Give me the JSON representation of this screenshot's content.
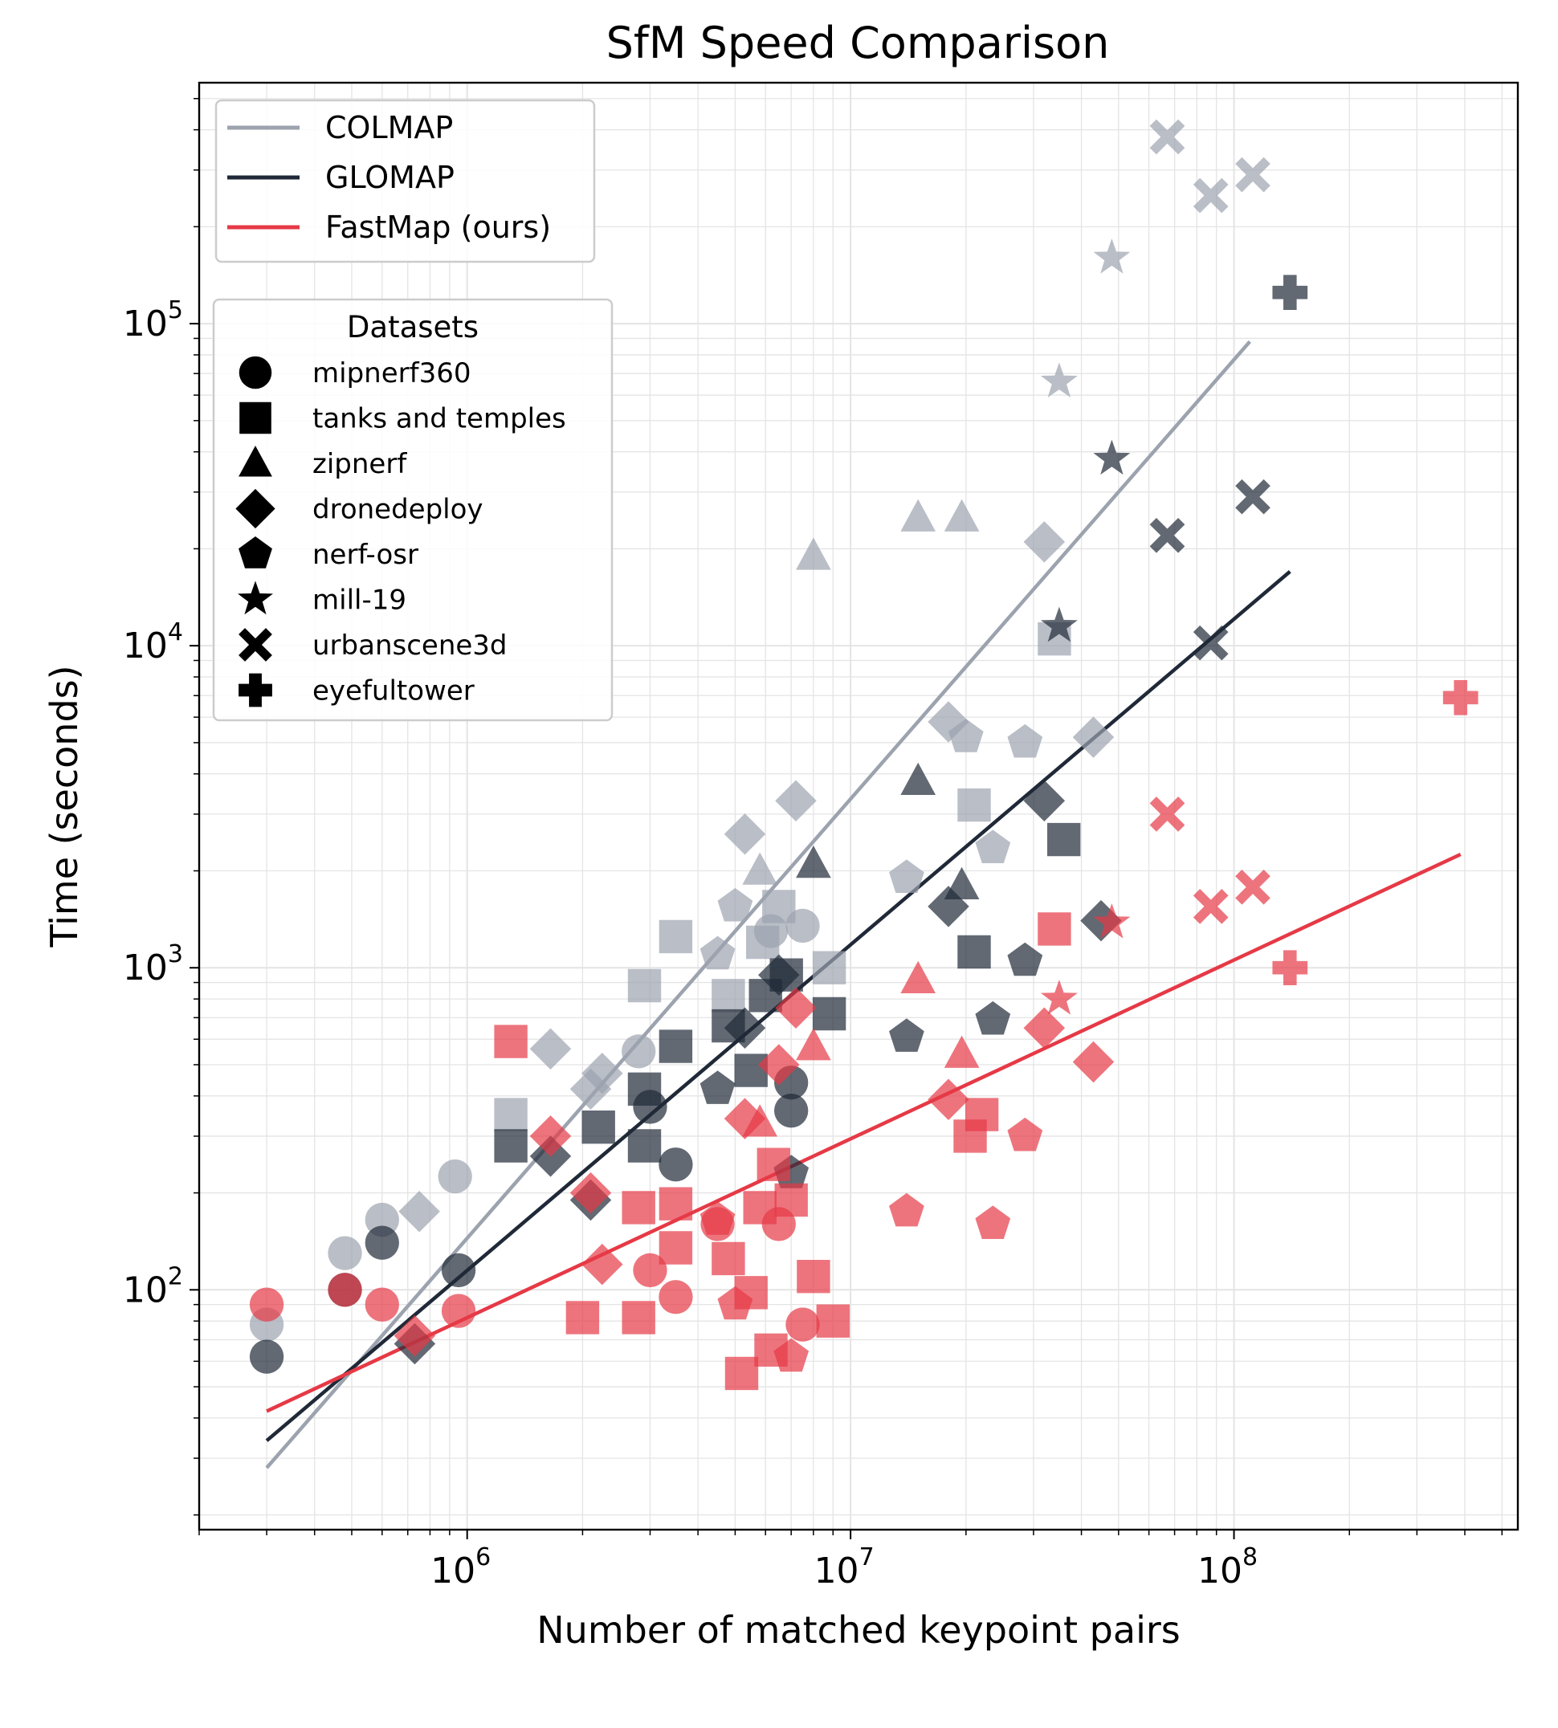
{
  "chart_data": {
    "type": "scatter",
    "title": "SfM Speed Comparison",
    "xlabel": "Number of matched keypoint pairs",
    "ylabel": "Time (seconds)",
    "xscale": "log",
    "yscale": "log",
    "xlim": [
      200000,
      550000000
    ],
    "ylim": [
      18,
      560000
    ],
    "grid": true,
    "x_ticks": [
      {
        "value": 1000000,
        "base": "10",
        "exp": "6"
      },
      {
        "value": 10000000,
        "base": "10",
        "exp": "7"
      },
      {
        "value": 100000000,
        "base": "10",
        "exp": "8"
      }
    ],
    "y_ticks": [
      {
        "value": 100,
        "base": "10",
        "exp": "2"
      },
      {
        "value": 1000,
        "base": "10",
        "exp": "3"
      },
      {
        "value": 10000,
        "base": "10",
        "exp": "4"
      },
      {
        "value": 100000,
        "base": "10",
        "exp": "5"
      }
    ],
    "methods_legend": {
      "placement": "upper-left",
      "entries": [
        {
          "name": "COLMAP",
          "color": "#9ca3af"
        },
        {
          "name": "GLOMAP",
          "color": "#1f2937"
        },
        {
          "name": "FastMap (ours)",
          "color": "#e63946"
        }
      ]
    },
    "datasets_legend": {
      "title": "Datasets",
      "placement": "upper-left",
      "entries": [
        {
          "name": "mipnerf360",
          "marker": "circle"
        },
        {
          "name": "tanks and temples",
          "marker": "square"
        },
        {
          "name": "zipnerf",
          "marker": "triangle"
        },
        {
          "name": "dronedeploy",
          "marker": "diamond"
        },
        {
          "name": "nerf-osr",
          "marker": "pentagon"
        },
        {
          "name": "mill-19",
          "marker": "star"
        },
        {
          "name": "urbanscene3d",
          "marker": "x"
        },
        {
          "name": "eyefultower",
          "marker": "plus"
        }
      ]
    },
    "fit_lines": [
      {
        "name": "COLMAP",
        "color": "#9ca3af",
        "x": [
          300000,
          110000000
        ],
        "y": [
          28,
          88000
        ]
      },
      {
        "name": "GLOMAP",
        "color": "#1f2937",
        "x": [
          300000,
          140000000
        ],
        "y": [
          34,
          17000
        ]
      },
      {
        "name": "FastMap (ours)",
        "color": "#e63946",
        "x": [
          300000,
          390000000
        ],
        "y": [
          42,
          2250
        ]
      }
    ],
    "series": [
      {
        "name": "COLMAP",
        "color": "#9ca3af",
        "points": [
          {
            "x": 300000,
            "y": 78,
            "m": "circle"
          },
          {
            "x": 480000,
            "y": 130,
            "m": "circle"
          },
          {
            "x": 600000,
            "y": 165,
            "m": "circle"
          },
          {
            "x": 930000,
            "y": 225,
            "m": "circle"
          },
          {
            "x": 2800000,
            "y": 550,
            "m": "circle"
          },
          {
            "x": 6200000,
            "y": 1300,
            "m": "circle"
          },
          {
            "x": 7500000,
            "y": 1350,
            "m": "circle"
          },
          {
            "x": 1300000,
            "y": 350,
            "m": "square"
          },
          {
            "x": 2900000,
            "y": 880,
            "m": "square"
          },
          {
            "x": 3500000,
            "y": 1250,
            "m": "square"
          },
          {
            "x": 4800000,
            "y": 820,
            "m": "square"
          },
          {
            "x": 5900000,
            "y": 1200,
            "m": "square"
          },
          {
            "x": 6500000,
            "y": 1550,
            "m": "square"
          },
          {
            "x": 8800000,
            "y": 1000,
            "m": "square"
          },
          {
            "x": 21000000,
            "y": 3200,
            "m": "square"
          },
          {
            "x": 34000000,
            "y": 10500,
            "m": "square"
          },
          {
            "x": 5800000,
            "y": 2000,
            "m": "triangle"
          },
          {
            "x": 8000000,
            "y": 19000,
            "m": "triangle"
          },
          {
            "x": 15000000,
            "y": 25000,
            "m": "triangle"
          },
          {
            "x": 19500000,
            "y": 25000,
            "m": "triangle"
          },
          {
            "x": 750000,
            "y": 175,
            "m": "diamond"
          },
          {
            "x": 1650000,
            "y": 560,
            "m": "diamond"
          },
          {
            "x": 2100000,
            "y": 420,
            "m": "diamond"
          },
          {
            "x": 2250000,
            "y": 470,
            "m": "diamond"
          },
          {
            "x": 5300000,
            "y": 2600,
            "m": "diamond"
          },
          {
            "x": 7200000,
            "y": 3300,
            "m": "diamond"
          },
          {
            "x": 18000000,
            "y": 5800,
            "m": "diamond"
          },
          {
            "x": 32000000,
            "y": 21000,
            "m": "diamond"
          },
          {
            "x": 43000000,
            "y": 5200,
            "m": "diamond"
          },
          {
            "x": 4500000,
            "y": 1100,
            "m": "pentagon"
          },
          {
            "x": 5000000,
            "y": 1550,
            "m": "pentagon"
          },
          {
            "x": 14000000,
            "y": 1900,
            "m": "pentagon"
          },
          {
            "x": 20000000,
            "y": 5200,
            "m": "pentagon"
          },
          {
            "x": 23500000,
            "y": 2350,
            "m": "pentagon"
          },
          {
            "x": 28500000,
            "y": 5000,
            "m": "pentagon"
          },
          {
            "x": 35000000,
            "y": 66000,
            "m": "star"
          },
          {
            "x": 48000000,
            "y": 160000,
            "m": "star"
          },
          {
            "x": 67000000,
            "y": 380000,
            "m": "x"
          },
          {
            "x": 87000000,
            "y": 250000,
            "m": "x"
          },
          {
            "x": 112000000,
            "y": 290000,
            "m": "x"
          }
        ]
      },
      {
        "name": "GLOMAP",
        "color": "#1f2937",
        "points": [
          {
            "x": 300000,
            "y": 62,
            "m": "circle"
          },
          {
            "x": 480000,
            "y": 100,
            "m": "circle"
          },
          {
            "x": 600000,
            "y": 140,
            "m": "circle"
          },
          {
            "x": 950000,
            "y": 115,
            "m": "circle"
          },
          {
            "x": 3000000,
            "y": 370,
            "m": "circle"
          },
          {
            "x": 3500000,
            "y": 245,
            "m": "circle"
          },
          {
            "x": 7000000,
            "y": 440,
            "m": "circle"
          },
          {
            "x": 7000000,
            "y": 360,
            "m": "circle"
          },
          {
            "x": 1300000,
            "y": 280,
            "m": "square"
          },
          {
            "x": 2200000,
            "y": 320,
            "m": "square"
          },
          {
            "x": 2900000,
            "y": 420,
            "m": "square"
          },
          {
            "x": 2900000,
            "y": 280,
            "m": "square"
          },
          {
            "x": 3500000,
            "y": 570,
            "m": "square"
          },
          {
            "x": 4800000,
            "y": 660,
            "m": "square"
          },
          {
            "x": 5500000,
            "y": 480,
            "m": "square"
          },
          {
            "x": 6000000,
            "y": 820,
            "m": "square"
          },
          {
            "x": 6800000,
            "y": 950,
            "m": "square"
          },
          {
            "x": 8800000,
            "y": 720,
            "m": "square"
          },
          {
            "x": 21000000,
            "y": 1120,
            "m": "square"
          },
          {
            "x": 36000000,
            "y": 2500,
            "m": "square"
          },
          {
            "x": 8000000,
            "y": 2100,
            "m": "triangle"
          },
          {
            "x": 15000000,
            "y": 3800,
            "m": "triangle"
          },
          {
            "x": 19500000,
            "y": 1800,
            "m": "triangle"
          },
          {
            "x": 730000,
            "y": 68,
            "m": "diamond"
          },
          {
            "x": 1650000,
            "y": 260,
            "m": "diamond"
          },
          {
            "x": 2100000,
            "y": 190,
            "m": "diamond"
          },
          {
            "x": 5300000,
            "y": 650,
            "m": "diamond"
          },
          {
            "x": 6500000,
            "y": 950,
            "m": "diamond"
          },
          {
            "x": 18000000,
            "y": 1550,
            "m": "diamond"
          },
          {
            "x": 32000000,
            "y": 3300,
            "m": "diamond"
          },
          {
            "x": 45000000,
            "y": 1400,
            "m": "diamond"
          },
          {
            "x": 4500000,
            "y": 420,
            "m": "pentagon"
          },
          {
            "x": 7000000,
            "y": 230,
            "m": "pentagon"
          },
          {
            "x": 14000000,
            "y": 610,
            "m": "pentagon"
          },
          {
            "x": 23500000,
            "y": 690,
            "m": "pentagon"
          },
          {
            "x": 28500000,
            "y": 1050,
            "m": "pentagon"
          },
          {
            "x": 35000000,
            "y": 11500,
            "m": "star"
          },
          {
            "x": 48000000,
            "y": 38000,
            "m": "star"
          },
          {
            "x": 67000000,
            "y": 22000,
            "m": "x"
          },
          {
            "x": 87000000,
            "y": 10200,
            "m": "x"
          },
          {
            "x": 112000000,
            "y": 29000,
            "m": "x"
          },
          {
            "x": 140000000,
            "y": 125000,
            "m": "plus"
          }
        ]
      },
      {
        "name": "FastMap (ours)",
        "color": "#e63946",
        "points": [
          {
            "x": 300000,
            "y": 90,
            "m": "circle"
          },
          {
            "x": 480000,
            "y": 100,
            "m": "circle"
          },
          {
            "x": 600000,
            "y": 90,
            "m": "circle"
          },
          {
            "x": 950000,
            "y": 86,
            "m": "circle"
          },
          {
            "x": 3000000,
            "y": 115,
            "m": "circle"
          },
          {
            "x": 3500000,
            "y": 95,
            "m": "circle"
          },
          {
            "x": 4500000,
            "y": 160,
            "m": "circle"
          },
          {
            "x": 6500000,
            "y": 160,
            "m": "circle"
          },
          {
            "x": 7500000,
            "y": 78,
            "m": "circle"
          },
          {
            "x": 1300000,
            "y": 590,
            "m": "square"
          },
          {
            "x": 2000000,
            "y": 82,
            "m": "square"
          },
          {
            "x": 2800000,
            "y": 82,
            "m": "square"
          },
          {
            "x": 2800000,
            "y": 180,
            "m": "square"
          },
          {
            "x": 3500000,
            "y": 185,
            "m": "square"
          },
          {
            "x": 3500000,
            "y": 135,
            "m": "square"
          },
          {
            "x": 4800000,
            "y": 125,
            "m": "square"
          },
          {
            "x": 5200000,
            "y": 55,
            "m": "square"
          },
          {
            "x": 5500000,
            "y": 98,
            "m": "square"
          },
          {
            "x": 5800000,
            "y": 180,
            "m": "square"
          },
          {
            "x": 6200000,
            "y": 65,
            "m": "square"
          },
          {
            "x": 6300000,
            "y": 245,
            "m": "square"
          },
          {
            "x": 7000000,
            "y": 190,
            "m": "square"
          },
          {
            "x": 8000000,
            "y": 110,
            "m": "square"
          },
          {
            "x": 9000000,
            "y": 80,
            "m": "square"
          },
          {
            "x": 20500000,
            "y": 300,
            "m": "square"
          },
          {
            "x": 22000000,
            "y": 350,
            "m": "square"
          },
          {
            "x": 34000000,
            "y": 1320,
            "m": "square"
          },
          {
            "x": 5800000,
            "y": 330,
            "m": "triangle"
          },
          {
            "x": 8000000,
            "y": 570,
            "m": "triangle"
          },
          {
            "x": 15000000,
            "y": 920,
            "m": "triangle"
          },
          {
            "x": 19500000,
            "y": 540,
            "m": "triangle"
          },
          {
            "x": 730000,
            "y": 72,
            "m": "diamond"
          },
          {
            "x": 1650000,
            "y": 300,
            "m": "diamond"
          },
          {
            "x": 2100000,
            "y": 200,
            "m": "diamond"
          },
          {
            "x": 2250000,
            "y": 120,
            "m": "diamond"
          },
          {
            "x": 5300000,
            "y": 340,
            "m": "diamond"
          },
          {
            "x": 6500000,
            "y": 500,
            "m": "diamond"
          },
          {
            "x": 7200000,
            "y": 750,
            "m": "diamond"
          },
          {
            "x": 18000000,
            "y": 390,
            "m": "diamond"
          },
          {
            "x": 32000000,
            "y": 650,
            "m": "diamond"
          },
          {
            "x": 43000000,
            "y": 510,
            "m": "diamond"
          },
          {
            "x": 4500000,
            "y": 165,
            "m": "pentagon"
          },
          {
            "x": 5000000,
            "y": 90,
            "m": "pentagon"
          },
          {
            "x": 7000000,
            "y": 62,
            "m": "pentagon"
          },
          {
            "x": 14000000,
            "y": 175,
            "m": "pentagon"
          },
          {
            "x": 23500000,
            "y": 160,
            "m": "pentagon"
          },
          {
            "x": 28500000,
            "y": 300,
            "m": "pentagon"
          },
          {
            "x": 35000000,
            "y": 800,
            "m": "star"
          },
          {
            "x": 48000000,
            "y": 1380,
            "m": "star"
          },
          {
            "x": 67000000,
            "y": 3000,
            "m": "x"
          },
          {
            "x": 87000000,
            "y": 1550,
            "m": "x"
          },
          {
            "x": 112000000,
            "y": 1780,
            "m": "x"
          },
          {
            "x": 140000000,
            "y": 1000,
            "m": "plus"
          },
          {
            "x": 390000000,
            "y": 6900,
            "m": "plus"
          }
        ]
      }
    ]
  }
}
